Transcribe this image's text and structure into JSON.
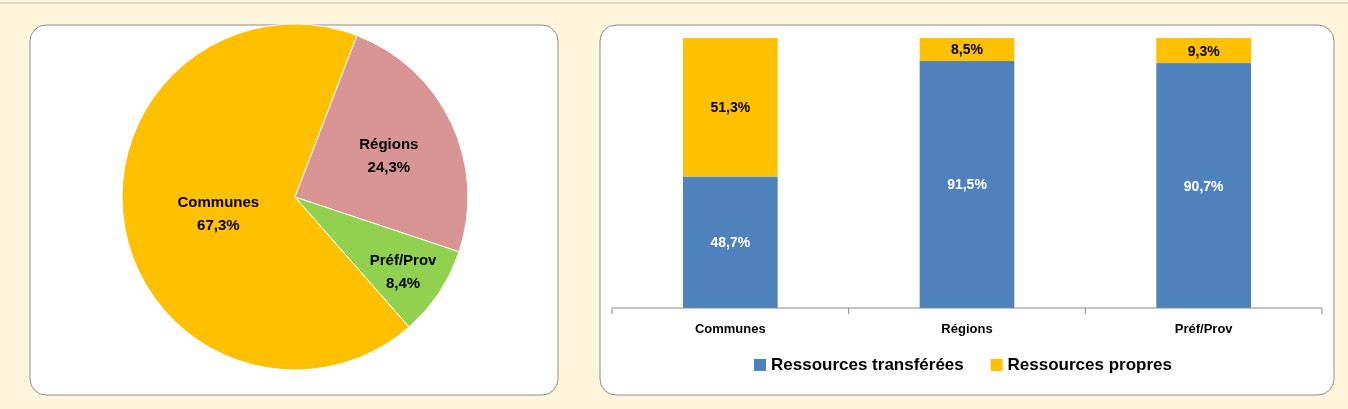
{
  "chart_data": [
    {
      "type": "pie",
      "categories": [
        "Communes",
        "Régions",
        "Préf/Prov"
      ],
      "values": [
        67.3,
        24.3,
        8.4
      ],
      "colors": [
        "#ffc000",
        "#d99594",
        "#92d050"
      ],
      "value_labels": [
        "67,3%",
        "24,3%",
        "8,4%"
      ]
    },
    {
      "type": "bar",
      "stacked": true,
      "categories": [
        "Communes",
        "Régions",
        "Préf/Prov"
      ],
      "series": [
        {
          "name": "Ressources transférées",
          "color": "#4f81bd",
          "values": [
            48.7,
            91.5,
            90.7
          ],
          "value_labels": [
            "48,7%",
            "91,5%",
            "90,7%"
          ]
        },
        {
          "name": "Ressources propres",
          "color": "#ffc000",
          "values": [
            51.3,
            8.5,
            9.3
          ],
          "value_labels": [
            "51,3%",
            "8,5%",
            "9,3%"
          ]
        }
      ],
      "legend": "bottom"
    }
  ]
}
